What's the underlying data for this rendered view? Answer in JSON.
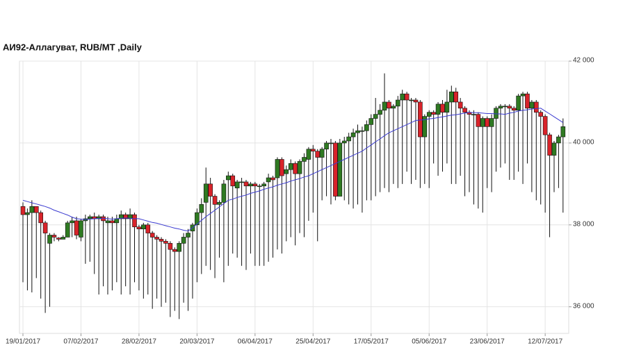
{
  "chart_data": {
    "type": "candlestick",
    "title": "АИ92-Аллагуват,  RUB/MT ,Daily",
    "categories": [
      "19/01/2017",
      null,
      null,
      null,
      null,
      null,
      null,
      null,
      null,
      null,
      null,
      null,
      null,
      "07/02/2017",
      null,
      null,
      null,
      null,
      null,
      null,
      null,
      null,
      null,
      null,
      null,
      null,
      "28/02/2017",
      null,
      null,
      null,
      null,
      null,
      null,
      null,
      null,
      null,
      null,
      null,
      null,
      "20/03/2017",
      null,
      null,
      null,
      null,
      null,
      null,
      null,
      null,
      null,
      null,
      null,
      null,
      "06/04/2017",
      null,
      null,
      null,
      null,
      null,
      null,
      null,
      null,
      null,
      null,
      null,
      null,
      "25/04/2017",
      null,
      null,
      null,
      null,
      null,
      null,
      null,
      null,
      null,
      null,
      null,
      null,
      "17/05/2017",
      null,
      null,
      null,
      null,
      null,
      null,
      null,
      null,
      null,
      null,
      null,
      null,
      "05/06/2017",
      null,
      null,
      null,
      null,
      null,
      null,
      null,
      null,
      null,
      null,
      null,
      null,
      "23/06/2017",
      null,
      null,
      null,
      null,
      null,
      null,
      null,
      null,
      null,
      null,
      null,
      null,
      "12/07/2017",
      null,
      null,
      null,
      null
    ],
    "open": [
      38450,
      38250,
      38300,
      38450,
      38300,
      38050,
      37550,
      37750,
      37680,
      37650,
      37700,
      38050,
      38100,
      37700,
      38100,
      38150,
      38200,
      38150,
      38200,
      38050,
      38100,
      38050,
      38150,
      38250,
      38150,
      38250,
      37950,
      37900,
      38000,
      37800,
      37700,
      37650,
      37600,
      37550,
      37400,
      37350,
      37550,
      37700,
      37850,
      38000,
      38300,
      38550,
      39000,
      38700,
      38500,
      38550,
      39100,
      39200,
      38900,
      39050,
      39050,
      38950,
      39000,
      38950,
      38950,
      39050,
      39150,
      39150,
      39600,
      39250,
      39350,
      39500,
      39250,
      39550,
      39600,
      39850,
      39800,
      39650,
      39850,
      40000,
      40000,
      38700,
      40000,
      40050,
      40150,
      40250,
      40300,
      40300,
      40450,
      40600,
      40700,
      40800,
      41000,
      40850,
      40900,
      41050,
      41200,
      41050,
      41050,
      41000,
      40150,
      40650,
      40750,
      40700,
      40950,
      40750,
      41000,
      41250,
      41000,
      40850,
      40750,
      40700,
      40700,
      40400,
      40600,
      40400,
      40600,
      40850,
      40900,
      40900,
      40850,
      40800,
      41150,
      41200,
      40850,
      41000,
      40750,
      40650,
      40200,
      39700,
      40000,
      40150
    ],
    "high": [
      38550,
      38400,
      38600,
      38450,
      38350,
      38100,
      37800,
      37800,
      37700,
      37750,
      38100,
      38200,
      38200,
      38150,
      38250,
      38250,
      38300,
      38250,
      38250,
      38200,
      38200,
      38250,
      38350,
      38300,
      38400,
      38300,
      38000,
      38050,
      38050,
      37850,
      37750,
      37700,
      37650,
      37600,
      37450,
      37600,
      37800,
      37900,
      38050,
      38400,
      38650,
      39400,
      39150,
      38750,
      38600,
      39100,
      39300,
      39250,
      39100,
      39150,
      39100,
      39050,
      39050,
      39000,
      39050,
      39250,
      39200,
      39650,
      39650,
      39450,
      39600,
      39550,
      39600,
      39750,
      39900,
      39950,
      39850,
      39900,
      40050,
      40100,
      40050,
      40100,
      40150,
      40250,
      40350,
      40450,
      40400,
      40550,
      40700,
      41100,
      40950,
      41700,
      41050,
      40950,
      41150,
      41300,
      41250,
      41100,
      41100,
      41050,
      40700,
      40800,
      40800,
      41000,
      41050,
      41300,
      41400,
      41350,
      41100,
      40900,
      40800,
      40800,
      40750,
      40650,
      40650,
      40700,
      40900,
      40950,
      40950,
      40950,
      40900,
      41200,
      41250,
      41250,
      41050,
      41050,
      40800,
      40700,
      40250,
      40050,
      40200,
      40600
    ],
    "low": [
      36600,
      36400,
      36350,
      36700,
      36200,
      35850,
      36000,
      37600,
      37600,
      37650,
      37700,
      37700,
      37650,
      37600,
      37050,
      37100,
      36800,
      36300,
      36500,
      36300,
      36400,
      36600,
      36300,
      36500,
      36300,
      36600,
      36400,
      36200,
      36300,
      35950,
      36200,
      36000,
      36100,
      35750,
      35900,
      35700,
      36100,
      35900,
      36200,
      36600,
      36800,
      37000,
      36900,
      36700,
      37200,
      36600,
      37000,
      37300,
      37200,
      37000,
      36900,
      37300,
      37000,
      37000,
      37000,
      37100,
      37200,
      37400,
      37300,
      37600,
      37700,
      37500,
      37800,
      37700,
      38100,
      38300,
      37600,
      38600,
      38700,
      38500,
      38600,
      38700,
      38600,
      38500,
      38400,
      38500,
      38300,
      38600,
      38600,
      38700,
      38800,
      38900,
      38800,
      39000,
      38900,
      39000,
      39300,
      39000,
      39100,
      38900,
      39000,
      38900,
      39500,
      39200,
      39300,
      39500,
      39000,
      39000,
      39200,
      38700,
      38800,
      38500,
      38400,
      38300,
      38900,
      38800,
      39300,
      39400,
      39500,
      39100,
      39100,
      39300,
      39000,
      39500,
      38800,
      38600,
      38500,
      38300,
      37700,
      38800,
      38900,
      38300
    ],
    "close": [
      38250,
      38300,
      38450,
      38300,
      38050,
      37800,
      37750,
      37700,
      37650,
      37700,
      38050,
      38100,
      37750,
      38100,
      38150,
      38200,
      38150,
      38200,
      38100,
      38100,
      38050,
      38150,
      38250,
      38150,
      38250,
      37950,
      37900,
      38000,
      37800,
      37700,
      37650,
      37600,
      37550,
      37400,
      37350,
      37550,
      37700,
      37800,
      38000,
      38300,
      38500,
      39000,
      38700,
      38500,
      38550,
      39000,
      39200,
      38950,
      39050,
      39050,
      38950,
      39000,
      38950,
      38950,
      39000,
      39150,
      39100,
      39600,
      39200,
      39350,
      39500,
      39250,
      39550,
      39650,
      39850,
      39800,
      39650,
      39850,
      40000,
      40000,
      38700,
      40000,
      40050,
      40150,
      40250,
      40300,
      40300,
      40450,
      40600,
      40700,
      40800,
      41000,
      40850,
      40900,
      41050,
      41200,
      41050,
      41050,
      41000,
      40150,
      40650,
      40750,
      40700,
      40950,
      40750,
      41000,
      41250,
      41000,
      40850,
      40750,
      40700,
      40700,
      40400,
      40600,
      40400,
      40600,
      40850,
      40900,
      40900,
      40850,
      40800,
      41150,
      41200,
      40850,
      41000,
      40750,
      40650,
      40200,
      39700,
      40000,
      40150,
      40400
    ],
    "ma": [
      38600,
      38570,
      38540,
      38510,
      38480,
      38450,
      38410,
      38360,
      38320,
      38280,
      38240,
      38190,
      38150,
      38140,
      38130,
      38140,
      38150,
      38160,
      38160,
      38150,
      38140,
      38150,
      38160,
      38170,
      38160,
      38150,
      38150,
      38120,
      38090,
      38060,
      38040,
      38010,
      37980,
      37950,
      37920,
      37900,
      37870,
      37850,
      37930,
      38020,
      38110,
      38200,
      38280,
      38360,
      38440,
      38520,
      38600,
      38630,
      38670,
      38700,
      38730,
      38770,
      38800,
      38830,
      38870,
      38900,
      38930,
      38970,
      39000,
      39030,
      39070,
      39100,
      39130,
      39170,
      39200,
      39250,
      39300,
      39350,
      39400,
      39450,
      39500,
      39550,
      39600,
      39650,
      39700,
      39750,
      39800,
      39880,
      39950,
      40030,
      40100,
      40180,
      40250,
      40300,
      40350,
      40400,
      40450,
      40500,
      40550,
      40560,
      40570,
      40590,
      40600,
      40620,
      40640,
      40660,
      40680,
      40690,
      40710,
      40730,
      40750,
      40740,
      40740,
      40730,
      40720,
      40720,
      40710,
      40710,
      40700,
      40730,
      40750,
      40780,
      40800,
      40810,
      40830,
      40840,
      40850,
      40780,
      40710,
      40640,
      40570,
      40500
    ],
    "up_color": "#2f7a22",
    "down_color": "#d8232a",
    "ma_color": "#3a3ad0",
    "ylim": [
      35350,
      42000
    ],
    "yticks": [
      {
        "value": 36000,
        "label": "36 000"
      },
      {
        "value": 38000,
        "label": "38 000"
      },
      {
        "value": 40000,
        "label": "40 000"
      },
      {
        "value": 42000,
        "label": "42 000"
      }
    ],
    "grid": true
  }
}
